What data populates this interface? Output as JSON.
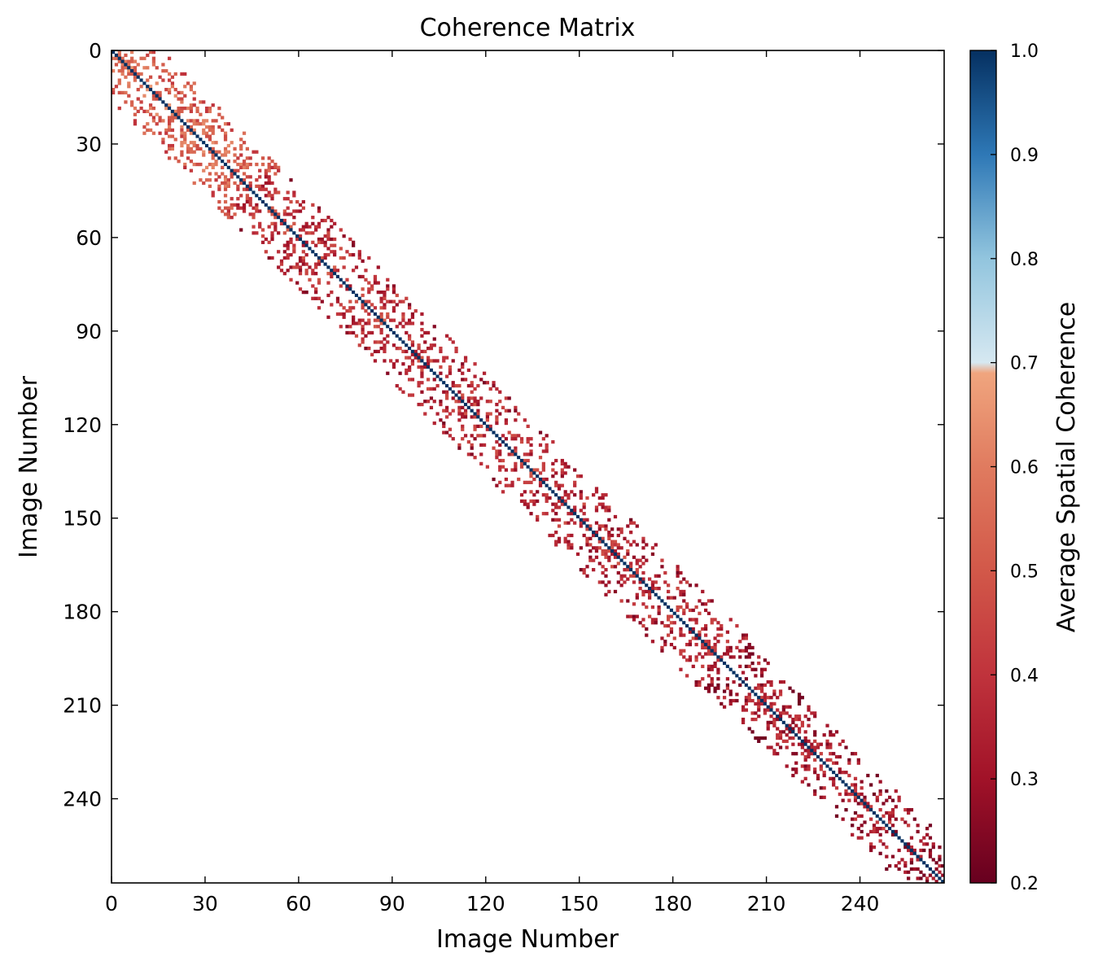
{
  "chart_data": {
    "type": "heatmap",
    "title": "Coherence Matrix",
    "xlabel": "Image Number",
    "ylabel": "Image Number",
    "n_images": 267,
    "xlim": [
      0,
      267
    ],
    "ylim": [
      267,
      0
    ],
    "x_ticks": [
      0,
      30,
      60,
      90,
      120,
      150,
      180,
      210,
      240
    ],
    "y_ticks": [
      0,
      30,
      60,
      90,
      120,
      150,
      180,
      210,
      240
    ],
    "x_tick_labels": [
      "0",
      "30",
      "60",
      "90",
      "120",
      "150",
      "180",
      "210",
      "240"
    ],
    "y_tick_labels": [
      "0",
      "30",
      "60",
      "90",
      "120",
      "150",
      "180",
      "210",
      "240"
    ],
    "diagonal_value": 1.0,
    "colorbar": {
      "label": "Average Spatial Coherence",
      "range": [
        0.2,
        1.0
      ],
      "ticks": [
        0.2,
        0.3,
        0.4,
        0.5,
        0.6,
        0.7,
        0.8,
        0.9,
        1.0
      ],
      "tick_labels": [
        "0.2",
        "0.3",
        "0.4",
        "0.5",
        "0.6",
        "0.7",
        "0.8",
        "0.9",
        "1.0"
      ],
      "colormap": "RdBu",
      "stops": [
        {
          "v": 0.2,
          "color": "#67001f"
        },
        {
          "v": 0.3,
          "color": "#a11228"
        },
        {
          "v": 0.4,
          "color": "#c0333c"
        },
        {
          "v": 0.5,
          "color": "#d25849"
        },
        {
          "v": 0.6,
          "color": "#e07b5f"
        },
        {
          "v": 0.69,
          "color": "#f0a57e"
        },
        {
          "v": 0.7,
          "color": "#d6e8f1"
        },
        {
          "v": 0.8,
          "color": "#92c5de"
        },
        {
          "v": 0.9,
          "color": "#2e78b6"
        },
        {
          "v": 1.0,
          "color": "#053061"
        }
      ]
    },
    "band": [
      {
        "start": 0,
        "end": 40,
        "half_width": 16,
        "density": 0.4,
        "mean": 0.56
      },
      {
        "start": 40,
        "end": 100,
        "half_width": 16,
        "density": 0.32,
        "mean": 0.42
      },
      {
        "start": 100,
        "end": 190,
        "half_width": 16,
        "density": 0.3,
        "mean": 0.4
      },
      {
        "start": 190,
        "end": 250,
        "half_width": 14,
        "density": 0.3,
        "mean": 0.36
      },
      {
        "start": 250,
        "end": 267,
        "half_width": 10,
        "density": 0.4,
        "mean": 0.32
      }
    ]
  }
}
